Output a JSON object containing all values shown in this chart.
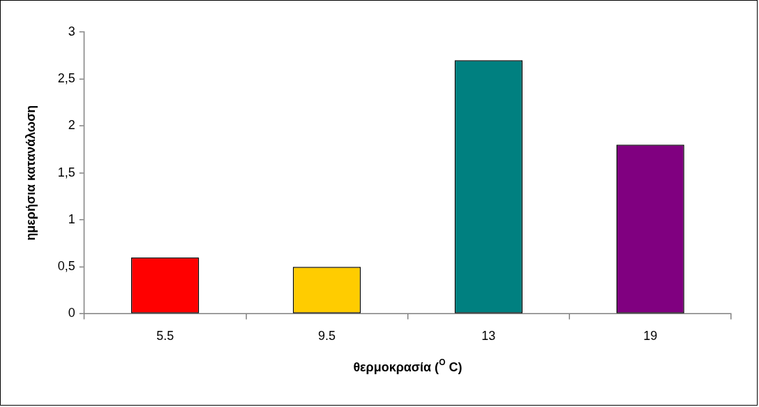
{
  "chart_data": {
    "type": "bar",
    "xlabel": "θερμοκρασία ($^{O}$ C)",
    "ylabel": "ημερήσια κατανάλωση",
    "categories": [
      "5.5",
      "9.5",
      "13",
      "19"
    ],
    "values": [
      0.6,
      0.5,
      2.7,
      1.8
    ],
    "colors": [
      "#ff0000",
      "#ffcc00",
      "#008080",
      "#800080"
    ],
    "ylim": [
      0,
      3
    ],
    "yticks": [
      0,
      {
        "value": 0.5,
        "label": "0,5"
      },
      1,
      {
        "value": 1.5,
        "label": "1,5"
      },
      2,
      {
        "value": 2.5,
        "label": "2,5"
      },
      3
    ]
  }
}
